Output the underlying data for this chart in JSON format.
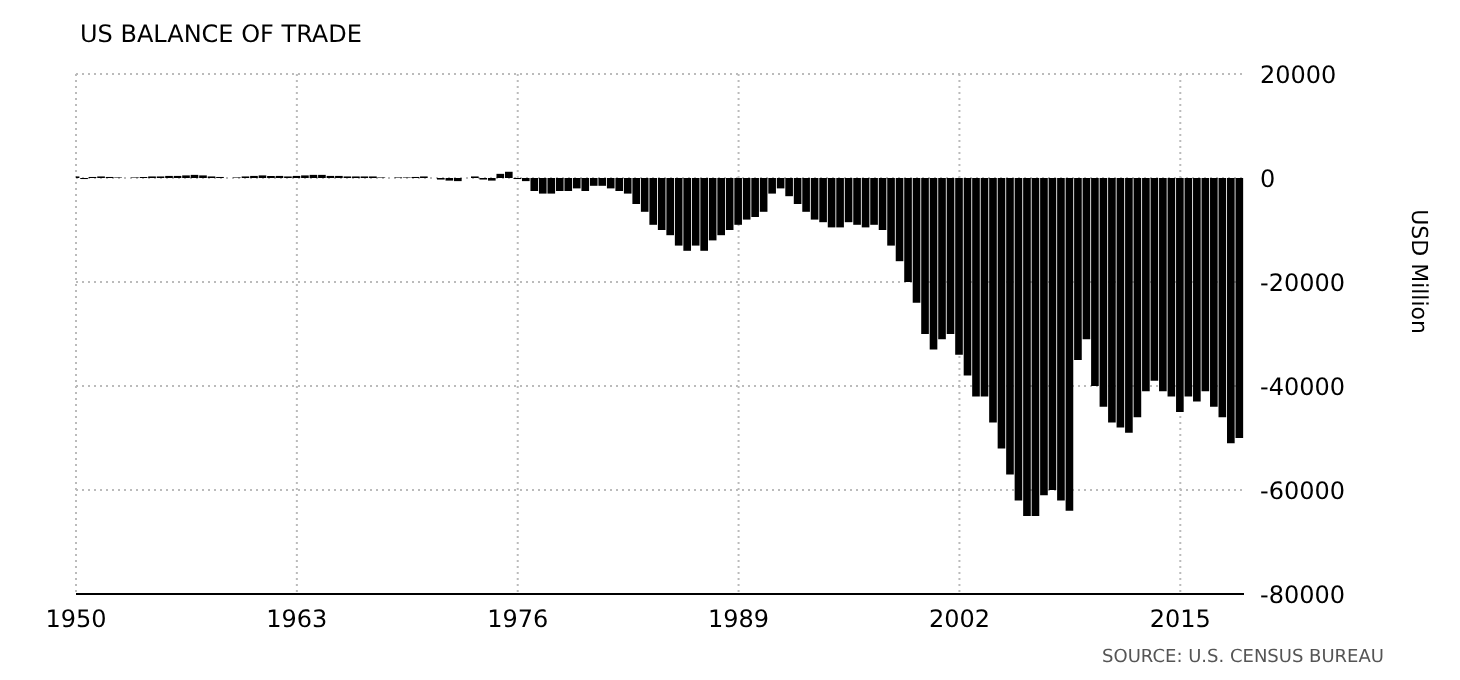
{
  "chart_data": {
    "type": "bar",
    "title": "US BALANCE OF TRADE",
    "ylabel": "USD Million",
    "annotations": [
      "SOURCE: U.S. CENSUS BUREAU"
    ],
    "x": [
      "1950-01",
      "1950-07",
      "1951-01",
      "1951-07",
      "1952-01",
      "1952-07",
      "1953-01",
      "1953-07",
      "1954-01",
      "1954-07",
      "1955-01",
      "1955-07",
      "1956-01",
      "1956-07",
      "1957-01",
      "1957-07",
      "1958-01",
      "1958-07",
      "1959-01",
      "1959-07",
      "1960-01",
      "1960-07",
      "1961-01",
      "1961-07",
      "1962-01",
      "1962-07",
      "1963-01",
      "1963-07",
      "1964-01",
      "1964-07",
      "1965-01",
      "1965-07",
      "1966-01",
      "1966-07",
      "1967-01",
      "1967-07",
      "1968-01",
      "1968-07",
      "1969-01",
      "1969-07",
      "1970-01",
      "1970-07",
      "1971-01",
      "1971-07",
      "1972-01",
      "1972-07",
      "1973-01",
      "1973-07",
      "1974-01",
      "1974-07",
      "1975-01",
      "1975-07",
      "1976-01",
      "1976-07",
      "1977-01",
      "1977-07",
      "1978-01",
      "1978-07",
      "1979-01",
      "1979-07",
      "1980-01",
      "1980-07",
      "1981-01",
      "1981-07",
      "1982-01",
      "1982-07",
      "1983-01",
      "1983-07",
      "1984-01",
      "1984-07",
      "1985-01",
      "1985-07",
      "1986-01",
      "1986-07",
      "1987-01",
      "1987-07",
      "1988-01",
      "1988-07",
      "1989-01",
      "1989-07",
      "1990-01",
      "1990-07",
      "1991-01",
      "1991-07",
      "1992-01",
      "1992-07",
      "1993-01",
      "1993-07",
      "1994-01",
      "1994-07",
      "1995-01",
      "1995-07",
      "1996-01",
      "1996-07",
      "1997-01",
      "1997-07",
      "1998-01",
      "1998-07",
      "1999-01",
      "1999-07",
      "2000-01",
      "2000-07",
      "2001-01",
      "2001-07",
      "2002-01",
      "2002-07",
      "2003-01",
      "2003-07",
      "2004-01",
      "2004-07",
      "2005-01",
      "2005-07",
      "2006-01",
      "2006-07",
      "2007-01",
      "2007-07",
      "2008-01",
      "2008-07",
      "2009-01",
      "2009-07",
      "2010-01",
      "2010-07",
      "2011-01",
      "2011-07",
      "2012-01",
      "2012-07",
      "2013-01",
      "2013-07",
      "2014-01",
      "2014-07",
      "2015-01",
      "2015-07",
      "2016-01",
      "2016-07",
      "2017-01",
      "2017-07",
      "2018-01",
      "2018-07"
    ],
    "values": [
      300,
      -200,
      200,
      300,
      200,
      100,
      0,
      100,
      200,
      300,
      300,
      400,
      400,
      500,
      600,
      500,
      300,
      200,
      0,
      100,
      300,
      400,
      500,
      400,
      400,
      300,
      400,
      500,
      600,
      600,
      400,
      400,
      300,
      300,
      300,
      300,
      100,
      0,
      100,
      100,
      200,
      300,
      0,
      -300,
      -500,
      -600,
      0,
      300,
      -300,
      -500,
      800,
      1200,
      -200,
      -600,
      -2500,
      -3000,
      -3000,
      -2500,
      -2500,
      -2000,
      -2500,
      -1500,
      -1500,
      -2000,
      -2500,
      -3000,
      -5000,
      -6500,
      -9000,
      -10000,
      -11000,
      -13000,
      -14000,
      -13000,
      -14000,
      -12000,
      -11000,
      -10000,
      -9000,
      -8000,
      -7500,
      -6500,
      -3000,
      -2000,
      -3500,
      -5000,
      -6500,
      -8000,
      -8500,
      -9500,
      -9500,
      -8500,
      -9000,
      -9500,
      -9000,
      -10000,
      -13000,
      -16000,
      -20000,
      -24000,
      -30000,
      -33000,
      -31000,
      -30000,
      -34000,
      -38000,
      -42000,
      -42000,
      -47000,
      -52000,
      -57000,
      -62000,
      -65000,
      -65000,
      -61000,
      -60000,
      -62000,
      -64000,
      -35000,
      -31000,
      -40000,
      -44000,
      -47000,
      -48000,
      -49000,
      -46000,
      -41000,
      -39000,
      -41000,
      -42000,
      -45000,
      -42000,
      -43000,
      -41000,
      -44000,
      -46000,
      -51000,
      -50000
    ],
    "color": "#000000",
    "xlim": [
      "1950",
      "2018-10"
    ],
    "xticks": [
      "1950",
      "1963",
      "1976",
      "1989",
      "2002",
      "2015"
    ],
    "ylim": [
      -80000,
      20000
    ],
    "yticks": [
      -80000,
      -60000,
      -40000,
      -20000,
      0,
      20000
    ],
    "grid": true,
    "legend": false
  }
}
